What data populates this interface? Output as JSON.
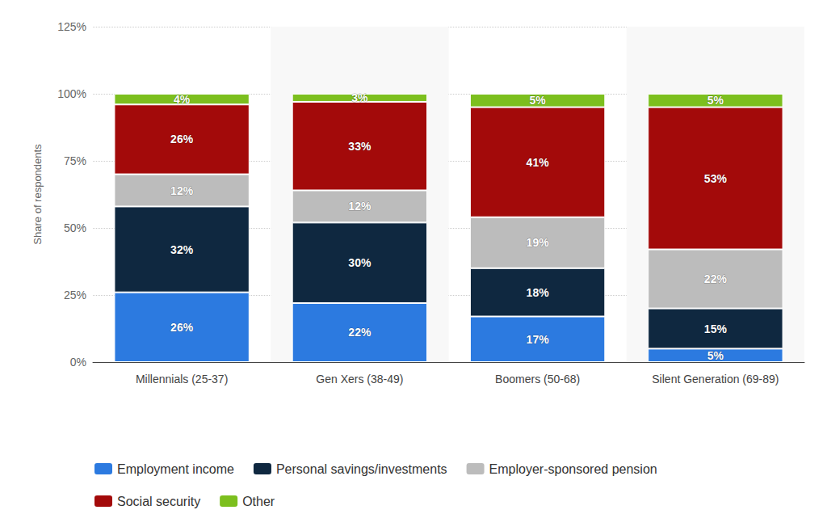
{
  "chart_data": {
    "type": "bar",
    "stacked": true,
    "data_labels": true,
    "grid": true,
    "legend": "bottom",
    "y_label": "Share of respondents",
    "categories": [
      "Millennials (25-37)",
      "Gen Xers (38-49)",
      "Boomers (50-68)",
      "Silent Generation (69-89)"
    ],
    "ylim": [
      0,
      125
    ],
    "yticks": [
      {
        "value": 0,
        "label": "0%"
      },
      {
        "value": 25,
        "label": "25%"
      },
      {
        "value": 50,
        "label": "50%"
      },
      {
        "value": 75,
        "label": "75%"
      },
      {
        "value": 100,
        "label": "100%"
      },
      {
        "value": 125,
        "label": "125%"
      }
    ],
    "series": [
      {
        "name": "Employment income",
        "color": "#2c7ae0",
        "values": [
          26,
          22,
          17,
          5
        ],
        "value_labels": [
          "26%",
          "22%",
          "17%",
          "5%"
        ]
      },
      {
        "name": "Personal savings/investments",
        "color": "#0f2840",
        "values": [
          32,
          30,
          18,
          15
        ],
        "value_labels": [
          "32%",
          "30%",
          "18%",
          "15%"
        ]
      },
      {
        "name": "Employer-sponsored pension",
        "color": "#bcbcbc",
        "values": [
          12,
          12,
          19,
          22
        ],
        "value_labels": [
          "12%",
          "12%",
          "19%",
          "22%"
        ]
      },
      {
        "name": "Social security",
        "color": "#a30a0a",
        "values": [
          26,
          33,
          41,
          53
        ],
        "value_labels": [
          "26%",
          "33%",
          "41%",
          "53%"
        ]
      },
      {
        "name": "Other",
        "color": "#7cbf1e",
        "values": [
          4,
          3,
          5,
          5
        ],
        "value_labels": [
          "4%",
          "3%",
          "5%",
          "5%"
        ]
      }
    ]
  }
}
